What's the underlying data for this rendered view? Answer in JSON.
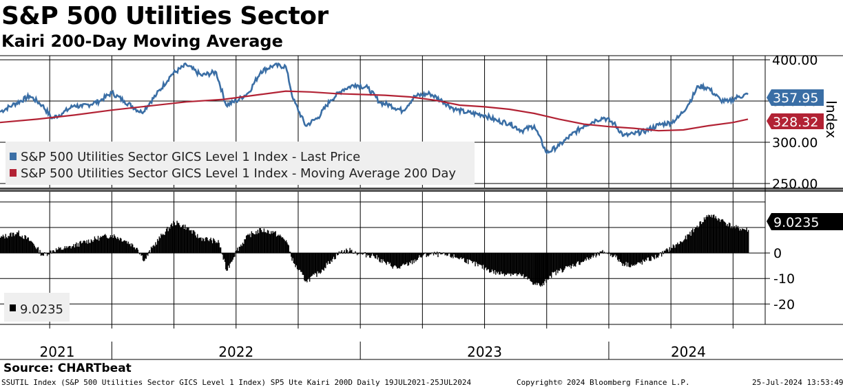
{
  "title": "S&P 500 Utilities Sector",
  "subtitle": "Kairi 200-Day Moving Average",
  "source": "Source: CHARTbeat",
  "footer": {
    "left": "SSUTIL Index (S&P 500 Utilities Sector GICS Level 1 Index) SP5 Ute Kairi 200D  Daily 19JUL2021-25JUL2024",
    "center": "Copyright© 2024 Bloomberg Finance L.P.",
    "right": "25-Jul-2024 13:53:49"
  },
  "colors": {
    "price": "#3a6ea5",
    "ma": "#b22234",
    "kairi": "#000000",
    "grid": "#000000"
  },
  "chart_data": [
    {
      "type": "line",
      "title": "S&P 500 Utilities Sector GICS Level 1 Index",
      "ylabel": "Index",
      "ylim": [
        245,
        405
      ],
      "yticks": [
        "400.00",
        "350.00",
        "300.00",
        "250.00"
      ],
      "ytick_values": [
        400,
        350,
        300,
        250
      ],
      "x_start": 2021.55,
      "x_end": 2024.56,
      "legend": "bottom-left",
      "series": [
        {
          "name": "S&P 500 Utilities Sector GICS Level 1 Index - Last Price",
          "last_value": "357.95",
          "points": [
            [
              2021.55,
              337
            ],
            [
              2021.6,
              345
            ],
            [
              2021.67,
              356
            ],
            [
              2021.72,
              345
            ],
            [
              2021.76,
              329
            ],
            [
              2021.8,
              335
            ],
            [
              2021.85,
              345
            ],
            [
              2021.88,
              343
            ],
            [
              2021.95,
              350
            ],
            [
              2022.0,
              360
            ],
            [
              2022.05,
              350
            ],
            [
              2022.12,
              336
            ],
            [
              2022.18,
              358
            ],
            [
              2022.24,
              382
            ],
            [
              2022.3,
              394
            ],
            [
              2022.36,
              381
            ],
            [
              2022.42,
              385
            ],
            [
              2022.46,
              345
            ],
            [
              2022.5,
              350
            ],
            [
              2022.55,
              360
            ],
            [
              2022.6,
              386
            ],
            [
              2022.65,
              393
            ],
            [
              2022.7,
              392
            ],
            [
              2022.73,
              352
            ],
            [
              2022.78,
              320
            ],
            [
              2022.83,
              330
            ],
            [
              2022.88,
              351
            ],
            [
              2022.93,
              364
            ],
            [
              2022.98,
              370
            ],
            [
              2023.03,
              366
            ],
            [
              2023.08,
              348
            ],
            [
              2023.12,
              345
            ],
            [
              2023.17,
              338
            ],
            [
              2023.22,
              356
            ],
            [
              2023.28,
              359
            ],
            [
              2023.33,
              350
            ],
            [
              2023.38,
              340
            ],
            [
              2023.43,
              336
            ],
            [
              2023.5,
              333
            ],
            [
              2023.55,
              326
            ],
            [
              2023.6,
              323
            ],
            [
              2023.65,
              314
            ],
            [
              2023.7,
              320
            ],
            [
              2023.75,
              287
            ],
            [
              2023.8,
              296
            ],
            [
              2023.85,
              309
            ],
            [
              2023.9,
              320
            ],
            [
              2023.95,
              327
            ],
            [
              2023.98,
              330
            ],
            [
              2024.02,
              323
            ],
            [
              2024.06,
              308
            ],
            [
              2024.1,
              310
            ],
            [
              2024.15,
              314
            ],
            [
              2024.2,
              321
            ],
            [
              2024.25,
              324
            ],
            [
              2024.28,
              330
            ],
            [
              2024.32,
              346
            ],
            [
              2024.36,
              368
            ],
            [
              2024.4,
              366
            ],
            [
              2024.45,
              351
            ],
            [
              2024.48,
              349
            ],
            [
              2024.52,
              355
            ],
            [
              2024.56,
              358
            ]
          ]
        },
        {
          "name": "S&P 500 Utilities Sector GICS Level 1 Index - Moving Average 200 Day",
          "last_value": "328.32",
          "points": [
            [
              2021.55,
              324
            ],
            [
              2021.7,
              328
            ],
            [
              2021.85,
              333
            ],
            [
              2022.0,
              339
            ],
            [
              2022.15,
              344
            ],
            [
              2022.3,
              349
            ],
            [
              2022.45,
              352
            ],
            [
              2022.6,
              358
            ],
            [
              2022.7,
              362
            ],
            [
              2022.8,
              361
            ],
            [
              2022.9,
              359
            ],
            [
              2023.0,
              358
            ],
            [
              2023.1,
              357
            ],
            [
              2023.2,
              355
            ],
            [
              2023.3,
              351
            ],
            [
              2023.4,
              345
            ],
            [
              2023.5,
              343
            ],
            [
              2023.6,
              340
            ],
            [
              2023.7,
              335
            ],
            [
              2023.8,
              328
            ],
            [
              2023.9,
              322
            ],
            [
              2024.0,
              319
            ],
            [
              2024.1,
              317
            ],
            [
              2024.2,
              314
            ],
            [
              2024.3,
              315
            ],
            [
              2024.4,
              320
            ],
            [
              2024.5,
              324
            ],
            [
              2024.56,
              328
            ]
          ]
        }
      ]
    },
    {
      "type": "bar",
      "title": "SP5 Ute Kairi 200D",
      "ylim": [
        -28,
        24
      ],
      "yticks": [
        "0",
        "-10",
        "-20"
      ],
      "ytick_values": [
        0,
        -10,
        -20
      ],
      "x_start": 2021.55,
      "x_end": 2024.56,
      "legend": "bottom-left",
      "series": [
        {
          "name": "SP5 Ute Kairi 200D",
          "last_value": "9.0235",
          "points": [
            [
              2021.55,
              6
            ],
            [
              2021.62,
              8
            ],
            [
              2021.68,
              4
            ],
            [
              2021.72,
              -1
            ],
            [
              2021.76,
              1
            ],
            [
              2021.82,
              2
            ],
            [
              2021.88,
              4
            ],
            [
              2021.95,
              6
            ],
            [
              2022.0,
              7
            ],
            [
              2022.05,
              5
            ],
            [
              2022.1,
              2
            ],
            [
              2022.13,
              -3
            ],
            [
              2022.16,
              2
            ],
            [
              2022.2,
              7
            ],
            [
              2022.25,
              12
            ],
            [
              2022.3,
              10
            ],
            [
              2022.35,
              6
            ],
            [
              2022.4,
              5
            ],
            [
              2022.43,
              4
            ],
            [
              2022.46,
              -7
            ],
            [
              2022.5,
              1
            ],
            [
              2022.55,
              7
            ],
            [
              2022.6,
              9
            ],
            [
              2022.65,
              8
            ],
            [
              2022.7,
              5
            ],
            [
              2022.73,
              -4
            ],
            [
              2022.78,
              -11
            ],
            [
              2022.83,
              -8
            ],
            [
              2022.88,
              -3
            ],
            [
              2022.92,
              0.5
            ],
            [
              2022.96,
              1
            ],
            [
              2023.0,
              -0.5
            ],
            [
              2023.05,
              -1
            ],
            [
              2023.1,
              -4
            ],
            [
              2023.15,
              -6
            ],
            [
              2023.2,
              -4
            ],
            [
              2023.25,
              -1
            ],
            [
              2023.3,
              -0.5
            ],
            [
              2023.35,
              -1
            ],
            [
              2023.4,
              -2
            ],
            [
              2023.45,
              -4
            ],
            [
              2023.5,
              -6
            ],
            [
              2023.55,
              -8
            ],
            [
              2023.6,
              -8
            ],
            [
              2023.65,
              -9
            ],
            [
              2023.7,
              -12
            ],
            [
              2023.73,
              -13
            ],
            [
              2023.76,
              -9
            ],
            [
              2023.8,
              -7
            ],
            [
              2023.85,
              -5
            ],
            [
              2023.9,
              -3
            ],
            [
              2023.95,
              -1
            ],
            [
              2023.98,
              0.5
            ],
            [
              2024.02,
              -1
            ],
            [
              2024.05,
              -4
            ],
            [
              2024.1,
              -5
            ],
            [
              2024.15,
              -3
            ],
            [
              2024.2,
              -1
            ],
            [
              2024.25,
              2
            ],
            [
              2024.3,
              5
            ],
            [
              2024.35,
              10
            ],
            [
              2024.4,
              15
            ],
            [
              2024.45,
              13
            ],
            [
              2024.5,
              10
            ],
            [
              2024.56,
              9.0235
            ]
          ]
        }
      ]
    }
  ],
  "x_axis": {
    "year_labels": [
      "2021",
      "2022",
      "2023",
      "2024"
    ],
    "year_label_positions": [
      2021.78,
      2022.5,
      2023.5,
      2024.32
    ],
    "year_boundaries": [
      2022.0,
      2023.0,
      2024.0
    ],
    "quarter_ticks": [
      2021.75,
      2022.0,
      2022.25,
      2022.5,
      2022.75,
      2023.0,
      2023.25,
      2023.5,
      2023.75,
      2024.0,
      2024.25,
      2024.5
    ]
  }
}
